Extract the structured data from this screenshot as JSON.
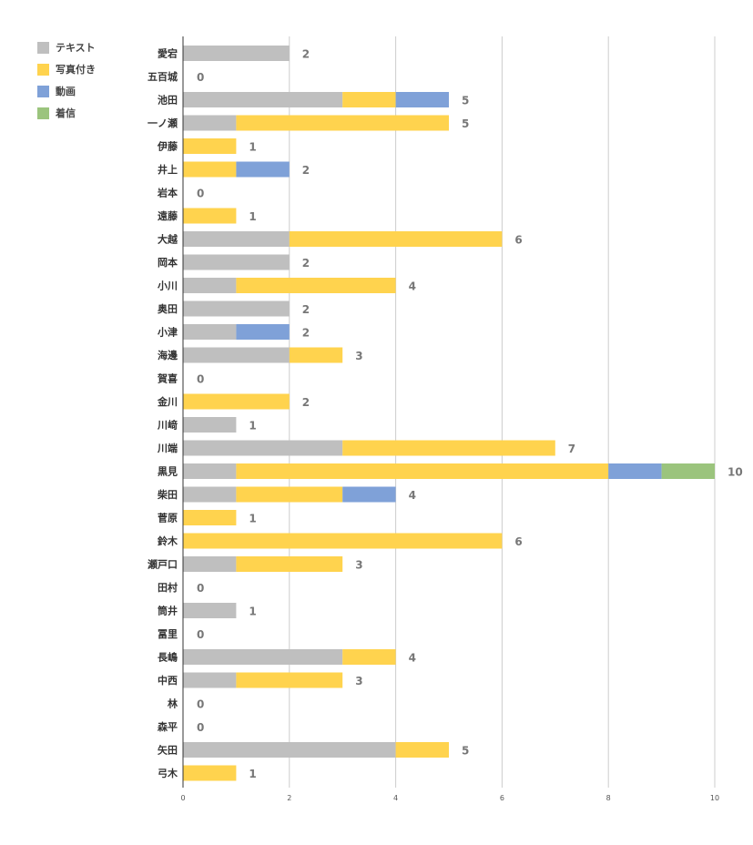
{
  "chart_data": {
    "type": "bar",
    "orientation": "horizontal",
    "stacked": true,
    "categories": [
      "愛宕",
      "五百城",
      "池田",
      "一ノ瀬",
      "伊藤",
      "井上",
      "岩本",
      "遠藤",
      "大越",
      "岡本",
      "小川",
      "奥田",
      "小津",
      "海邊",
      "賀喜",
      "金川",
      "川﨑",
      "川端",
      "黒見",
      "柴田",
      "菅原",
      "鈴木",
      "瀬戸口",
      "田村",
      "筒井",
      "冨里",
      "長嶋",
      "中西",
      "林",
      "森平",
      "矢田",
      "弓木"
    ],
    "series": [
      {
        "name": "テキスト",
        "color": "#bfbfbf",
        "values": [
          2,
          0,
          3,
          1,
          0,
          0,
          0,
          0,
          2,
          2,
          1,
          2,
          1,
          2,
          0,
          0,
          1,
          3,
          1,
          1,
          0,
          0,
          1,
          0,
          1,
          0,
          3,
          1,
          0,
          0,
          4,
          0
        ]
      },
      {
        "name": "写真付き",
        "color": "#ffd34e",
        "values": [
          0,
          0,
          1,
          4,
          1,
          1,
          0,
          1,
          4,
          0,
          3,
          0,
          0,
          1,
          0,
          2,
          0,
          4,
          7,
          2,
          1,
          6,
          2,
          0,
          0,
          0,
          1,
          2,
          0,
          0,
          1,
          1
        ]
      },
      {
        "name": "動画",
        "color": "#7fa1d8",
        "values": [
          0,
          0,
          1,
          0,
          0,
          1,
          0,
          0,
          0,
          0,
          0,
          0,
          1,
          0,
          0,
          0,
          0,
          0,
          1,
          1,
          0,
          0,
          0,
          0,
          0,
          0,
          0,
          0,
          0,
          0,
          0,
          0
        ]
      },
      {
        "name": "着信",
        "color": "#9bc47d",
        "values": [
          0,
          0,
          0,
          0,
          0,
          0,
          0,
          0,
          0,
          0,
          0,
          0,
          0,
          0,
          0,
          0,
          0,
          0,
          1,
          0,
          0,
          0,
          0,
          0,
          0,
          0,
          0,
          0,
          0,
          0,
          0,
          0
        ]
      }
    ],
    "totals": [
      2,
      0,
      5,
      5,
      1,
      2,
      0,
      1,
      6,
      2,
      4,
      2,
      2,
      3,
      0,
      2,
      1,
      7,
      10,
      4,
      1,
      6,
      3,
      0,
      1,
      0,
      4,
      3,
      0,
      0,
      5,
      1
    ],
    "xlim": [
      0,
      10
    ],
    "xticks": [
      "0",
      "2",
      "4",
      "6",
      "8",
      "10"
    ],
    "grid": true,
    "legend_position": "top-left"
  }
}
